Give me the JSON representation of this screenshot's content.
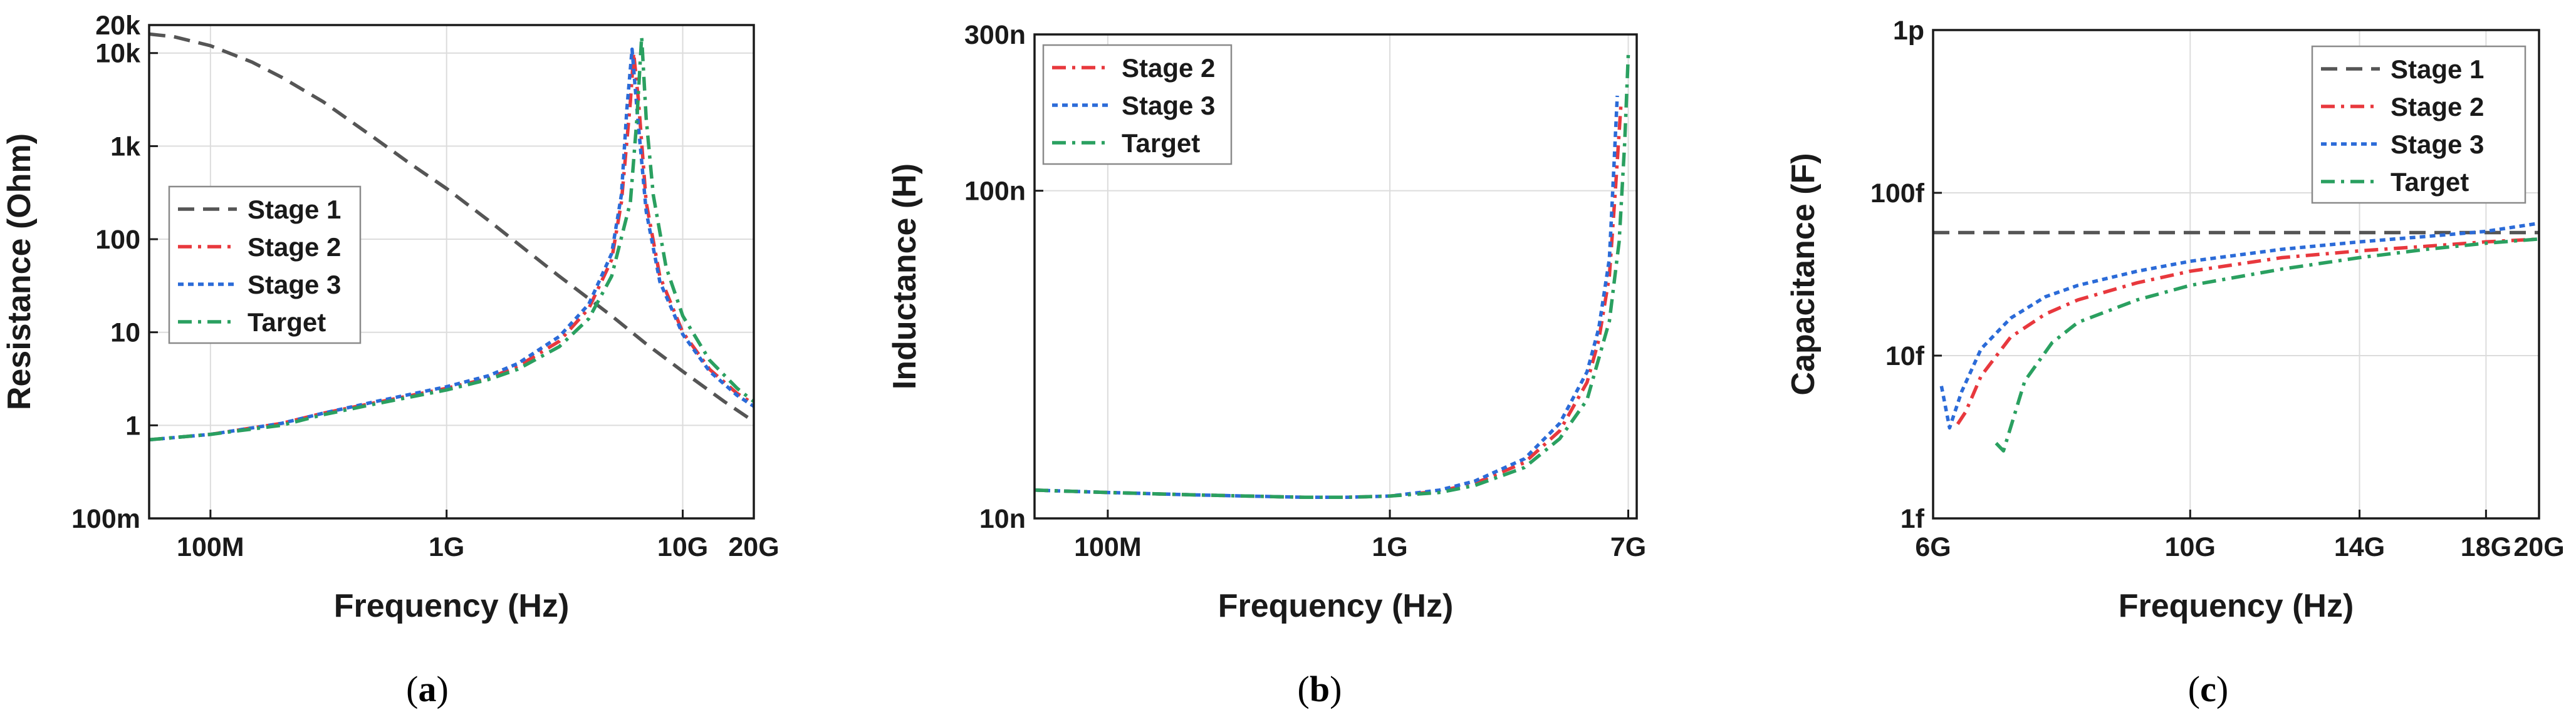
{
  "chart_data": [
    {
      "type": "line",
      "caption": "a",
      "xlabel": "Frequency (Hz)",
      "ylabel": "Resistance (Ohm)",
      "xscale": "log",
      "yscale": "log",
      "xlim": [
        55000000.0,
        20000000000.0
      ],
      "ylim": [
        0.1,
        20000
      ],
      "xticks": [
        {
          "v": 100000000.0,
          "label": "100M"
        },
        {
          "v": 1000000000.0,
          "label": "1G"
        },
        {
          "v": 10000000000.0,
          "label": "10G"
        },
        {
          "v": 20000000000.0,
          "label": "20G"
        }
      ],
      "yticks": [
        {
          "v": 0.1,
          "label": "100m"
        },
        {
          "v": 1,
          "label": "1"
        },
        {
          "v": 10,
          "label": "10"
        },
        {
          "v": 100,
          "label": "100"
        },
        {
          "v": 1000,
          "label": "1k"
        },
        {
          "v": 10000,
          "label": "10k"
        },
        {
          "v": 20000,
          "label": "20k"
        }
      ],
      "grid": true,
      "legend_position": "center-left",
      "series": [
        {
          "name": "Stage 1",
          "style": "dash",
          "color": "#555555",
          "x": [
            55000000.0,
            70000000.0,
            100000000.0,
            150000000.0,
            200000000.0,
            300000000.0,
            500000000.0,
            700000000.0,
            1000000000.0,
            1500000000.0,
            2000000000.0,
            3000000000.0,
            5000000000.0,
            7000000000.0,
            10000000000.0,
            15000000000.0,
            20000000000.0
          ],
          "y": [
            16000,
            15000,
            12000,
            8000,
            5500,
            3000,
            1200,
            650,
            350,
            160,
            90,
            40,
            15,
            7.5,
            3.8,
            1.8,
            1.1
          ]
        },
        {
          "name": "Stage 2",
          "style": "dashdot",
          "color": "#e8383d",
          "x": [
            55000000.0,
            100000000.0,
            200000000.0,
            300000000.0,
            500000000.0,
            1000000000.0,
            1500000000.0,
            2000000000.0,
            3000000000.0,
            4000000000.0,
            5000000000.0,
            5500000000.0,
            6000000000.0,
            6200000000.0,
            6500000000.0,
            7000000000.0,
            8000000000.0,
            10000000000.0,
            13000000000.0,
            17000000000.0,
            20000000000.0
          ],
          "y": [
            0.7,
            0.8,
            1.05,
            1.35,
            1.75,
            2.5,
            3.2,
            4.3,
            8,
            18,
            60,
            250,
            3000,
            10000,
            3000,
            250,
            40,
            10,
            4,
            2.2,
            1.7
          ]
        },
        {
          "name": "Stage 3",
          "style": "dot",
          "color": "#2b6bd8",
          "x": [
            55000000.0,
            100000000.0,
            200000000.0,
            300000000.0,
            500000000.0,
            1000000000.0,
            1500000000.0,
            2000000000.0,
            3000000000.0,
            4000000000.0,
            5000000000.0,
            5500000000.0,
            5800000000.0,
            6100000000.0,
            6400000000.0,
            7000000000.0,
            8000000000.0,
            10000000000.0,
            13000000000.0,
            17000000000.0,
            20000000000.0
          ],
          "y": [
            0.7,
            0.8,
            1.05,
            1.35,
            1.8,
            2.6,
            3.4,
            4.6,
            9,
            20,
            70,
            300,
            2500,
            11000,
            2500,
            200,
            35,
            9.5,
            3.8,
            2.1,
            1.6
          ]
        },
        {
          "name": "Target",
          "style": "dashdot",
          "color": "#2aa060",
          "x": [
            55000000.0,
            100000000.0,
            200000000.0,
            300000000.0,
            500000000.0,
            1000000000.0,
            1500000000.0,
            2000000000.0,
            3000000000.0,
            4000000000.0,
            5000000000.0,
            6000000000.0,
            6400000000.0,
            6700000000.0,
            7000000000.0,
            7500000000.0,
            8500000000.0,
            10000000000.0,
            13000000000.0,
            17000000000.0,
            20000000000.0
          ],
          "y": [
            0.7,
            0.8,
            1.0,
            1.3,
            1.7,
            2.4,
            3.1,
            4.0,
            7,
            14,
            40,
            250,
            2000,
            15000,
            2000,
            300,
            50,
            15,
            5,
            2.5,
            1.8
          ]
        }
      ]
    },
    {
      "type": "line",
      "caption": "b",
      "xlabel": "Frequency (Hz)",
      "ylabel": "Inductance (H)",
      "xscale": "log",
      "yscale": "log",
      "xlim": [
        55000000.0,
        7500000000.0
      ],
      "ylim": [
        10,
        300
      ],
      "xticks": [
        {
          "v": 100000000.0,
          "label": "100M"
        },
        {
          "v": 1000000000.0,
          "label": "1G"
        },
        {
          "v": 7000000000.0,
          "label": "7G"
        }
      ],
      "yticks": [
        {
          "v": 10,
          "label": "10n"
        },
        {
          "v": 100,
          "label": "100n"
        },
        {
          "v": 300,
          "label": "300n"
        }
      ],
      "grid": true,
      "legend_position": "top-left",
      "series": [
        {
          "name": "Stage 2",
          "style": "dashdot",
          "color": "#e8383d",
          "x": [
            55000000.0,
            100000000.0,
            200000000.0,
            500000000.0,
            700000000.0,
            1000000000.0,
            1500000000.0,
            2000000000.0,
            3000000000.0,
            4000000000.0,
            5000000000.0,
            5500000000.0,
            6000000000.0,
            6300000000.0,
            6600000000.0
          ],
          "y": [
            12.2,
            12.0,
            11.8,
            11.6,
            11.6,
            11.7,
            12.1,
            12.8,
            14.8,
            18.5,
            26,
            35,
            55,
            100,
            185
          ]
        },
        {
          "name": "Stage 3",
          "style": "dot",
          "color": "#2b6bd8",
          "x": [
            55000000.0,
            100000000.0,
            200000000.0,
            500000000.0,
            700000000.0,
            1000000000.0,
            1500000000.0,
            2000000000.0,
            3000000000.0,
            4000000000.0,
            5000000000.0,
            5500000000.0,
            6000000000.0,
            6200000000.0,
            6400000000.0
          ],
          "y": [
            12.2,
            12.0,
            11.8,
            11.6,
            11.6,
            11.7,
            12.2,
            13.0,
            15.2,
            19.5,
            28,
            38,
            62,
            110,
            195
          ]
        },
        {
          "name": "Target",
          "style": "dashdot",
          "color": "#2aa060",
          "x": [
            55000000.0,
            100000000.0,
            200000000.0,
            500000000.0,
            700000000.0,
            1000000000.0,
            1500000000.0,
            2000000000.0,
            3000000000.0,
            4000000000.0,
            5000000000.0,
            6000000000.0,
            6500000000.0,
            6800000000.0,
            7000000000.0
          ],
          "y": [
            12.2,
            12.0,
            11.8,
            11.6,
            11.6,
            11.7,
            12.0,
            12.6,
            14.3,
            17.5,
            23,
            40,
            70,
            140,
            260
          ]
        }
      ]
    },
    {
      "type": "line",
      "caption": "c",
      "xlabel": "Frequency (Hz)",
      "ylabel": "Capacitance (F)",
      "xscale": "log",
      "yscale": "log",
      "xlim": [
        6000000000.0,
        20000000000.0
      ],
      "ylim": [
        1,
        1000
      ],
      "xticks": [
        {
          "v": 6000000000.0,
          "label": "6G"
        },
        {
          "v": 10000000000.0,
          "label": "10G"
        },
        {
          "v": 14000000000.0,
          "label": "14G"
        },
        {
          "v": 18000000000.0,
          "label": "18G"
        },
        {
          "v": 20000000000.0,
          "label": "20G"
        }
      ],
      "yticks": [
        {
          "v": 1,
          "label": "1f"
        },
        {
          "v": 10,
          "label": "10f"
        },
        {
          "v": 100,
          "label": "100f"
        },
        {
          "v": 1000,
          "label": "1p"
        }
      ],
      "grid": true,
      "legend_position": "top-right",
      "series": [
        {
          "name": "Stage 1",
          "style": "dash",
          "color": "#555555",
          "x": [
            6000000000.0,
            20000000000.0
          ],
          "y": [
            57,
            57
          ]
        },
        {
          "name": "Stage 2",
          "style": "dashdot",
          "color": "#e8383d",
          "x": [
            6300000000.0,
            6400000000.0,
            6600000000.0,
            7000000000.0,
            7500000000.0,
            8000000000.0,
            9000000000.0,
            10000000000.0,
            12000000000.0,
            14000000000.0,
            16000000000.0,
            18000000000.0,
            20000000000.0
          ],
          "y": [
            3.8,
            4.5,
            7.5,
            13,
            18,
            22,
            28,
            33,
            40,
            44,
            47,
            50,
            52
          ]
        },
        {
          "name": "Stage 3",
          "style": "dot",
          "color": "#2b6bd8",
          "x": [
            6100000000.0,
            6200000000.0,
            6350000000.0,
            6600000000.0,
            7000000000.0,
            7500000000.0,
            8000000000.0,
            9000000000.0,
            10000000000.0,
            12000000000.0,
            14000000000.0,
            16000000000.0,
            18000000000.0,
            20000000000.0
          ],
          "y": [
            6.5,
            3.6,
            6,
            11,
            17,
            23,
            27,
            33,
            38,
            45,
            50,
            54,
            58,
            65
          ]
        },
        {
          "name": "Target",
          "style": "dashdot",
          "color": "#2aa060",
          "x": [
            6800000000.0,
            6900000000.0,
            7200000000.0,
            7600000000.0,
            8000000000.0,
            9000000000.0,
            10000000000.0,
            12000000000.0,
            14000000000.0,
            16000000000.0,
            18000000000.0,
            20000000000.0
          ],
          "y": [
            2.9,
            2.6,
            7,
            12,
            16,
            22,
            27,
            34,
            40,
            45,
            49,
            52
          ]
        }
      ]
    }
  ]
}
